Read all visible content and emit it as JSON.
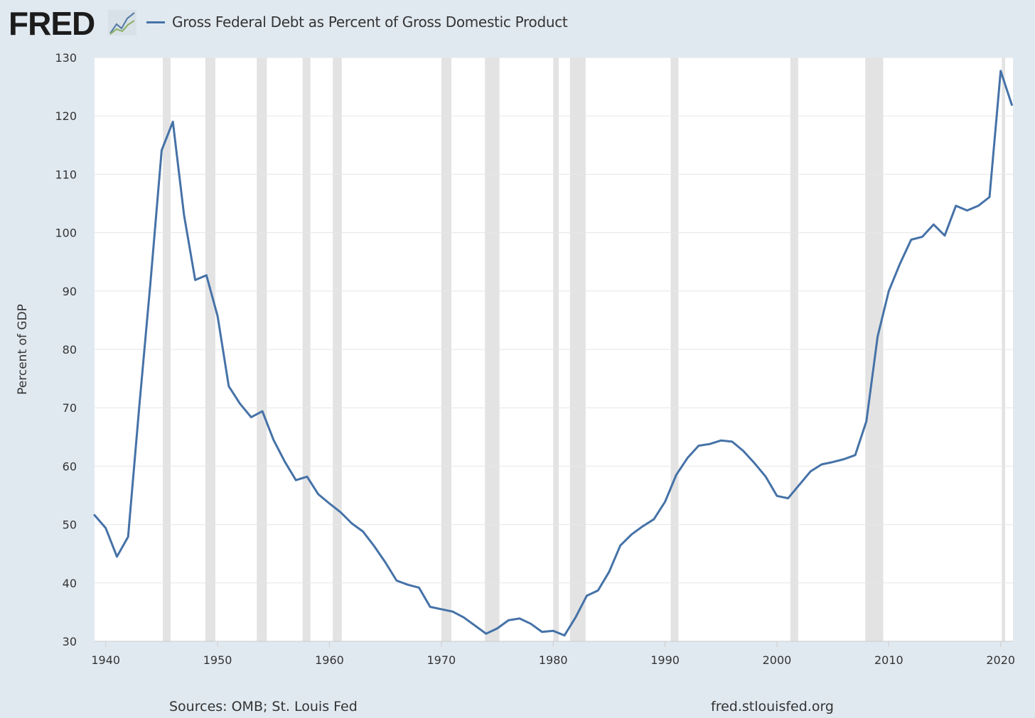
{
  "header": {
    "logo_text": "FRED",
    "logo_icon": "line-chart-icon",
    "legend_label": "Gross Federal Debt as Percent of Gross Domestic Product"
  },
  "footer": {
    "sources": "Sources: OMB; St. Louis Fed",
    "url": "fred.stlouisfed.org"
  },
  "colors": {
    "background": "#e1e9f0",
    "plot_background": "#ffffff",
    "line": "#4572a7",
    "recession": "#e3e3e3",
    "grid": "#e6e6e6"
  },
  "chart_data": {
    "type": "line",
    "title": "Gross Federal Debt as Percent of Gross Domestic Product",
    "xlabel": "",
    "ylabel": "Percent of GDP",
    "xlim": [
      1939,
      2021.1
    ],
    "ylim": [
      30,
      130
    ],
    "x_ticks": [
      1940,
      1950,
      1960,
      1970,
      1980,
      1990,
      2000,
      2010,
      2020
    ],
    "y_ticks": [
      30,
      40,
      50,
      60,
      70,
      80,
      90,
      100,
      110,
      120,
      130
    ],
    "grid": true,
    "legend": "top-left",
    "recession_periods": [
      [
        1945.1,
        1945.8
      ],
      [
        1948.9,
        1949.8
      ],
      [
        1953.5,
        1954.4
      ],
      [
        1957.6,
        1958.3
      ],
      [
        1960.3,
        1961.1
      ],
      [
        1970.0,
        1970.9
      ],
      [
        1973.9,
        1975.2
      ],
      [
        1980.0,
        1980.5
      ],
      [
        1981.5,
        1982.9
      ],
      [
        1990.5,
        1991.2
      ],
      [
        2001.2,
        2001.9
      ],
      [
        2007.9,
        2009.5
      ],
      [
        2020.1,
        2020.4
      ]
    ],
    "series": [
      {
        "name": "Gross Federal Debt as Percent of Gross Domestic Product",
        "x": [
          1939,
          1940,
          1941,
          1942,
          1943,
          1944,
          1945,
          1946,
          1947,
          1948,
          1949,
          1950,
          1951,
          1952,
          1953,
          1954,
          1955,
          1956,
          1957,
          1958,
          1959,
          1960,
          1961,
          1962,
          1963,
          1964,
          1965,
          1966,
          1967,
          1968,
          1969,
          1970,
          1971,
          1972,
          1973,
          1974,
          1975,
          1976,
          1977,
          1978,
          1979,
          1980,
          1981,
          1982,
          1983,
          1984,
          1985,
          1986,
          1987,
          1988,
          1989,
          1990,
          1991,
          1992,
          1993,
          1994,
          1995,
          1996,
          1997,
          1998,
          1999,
          2000,
          2001,
          2002,
          2003,
          2004,
          2005,
          2006,
          2007,
          2008,
          2009,
          2010,
          2011,
          2012,
          2013,
          2014,
          2015,
          2016,
          2017,
          2018,
          2019,
          2020,
          2021
        ],
        "values": [
          51.6,
          49.4,
          44.5,
          47.9,
          70.2,
          91.5,
          114.1,
          119.0,
          103.0,
          91.9,
          92.7,
          85.7,
          73.7,
          70.7,
          68.4,
          69.4,
          64.5,
          60.8,
          57.6,
          58.2,
          55.2,
          53.6,
          52.1,
          50.2,
          48.8,
          46.3,
          43.5,
          40.4,
          39.7,
          39.2,
          35.9,
          35.5,
          35.1,
          34.1,
          32.7,
          31.3,
          32.2,
          33.6,
          33.9,
          33.0,
          31.6,
          31.8,
          31.0,
          34.1,
          37.8,
          38.7,
          41.9,
          46.4,
          48.3,
          49.7,
          50.9,
          53.9,
          58.5,
          61.4,
          63.5,
          63.8,
          64.4,
          64.2,
          62.6,
          60.5,
          58.2,
          54.9,
          54.5,
          56.8,
          59.1,
          60.3,
          60.7,
          61.2,
          61.9,
          67.7,
          82.2,
          90.0,
          94.7,
          98.8,
          99.3,
          101.4,
          99.5,
          104.6,
          103.8,
          104.6,
          106.1,
          127.7,
          121.9
        ]
      }
    ]
  }
}
